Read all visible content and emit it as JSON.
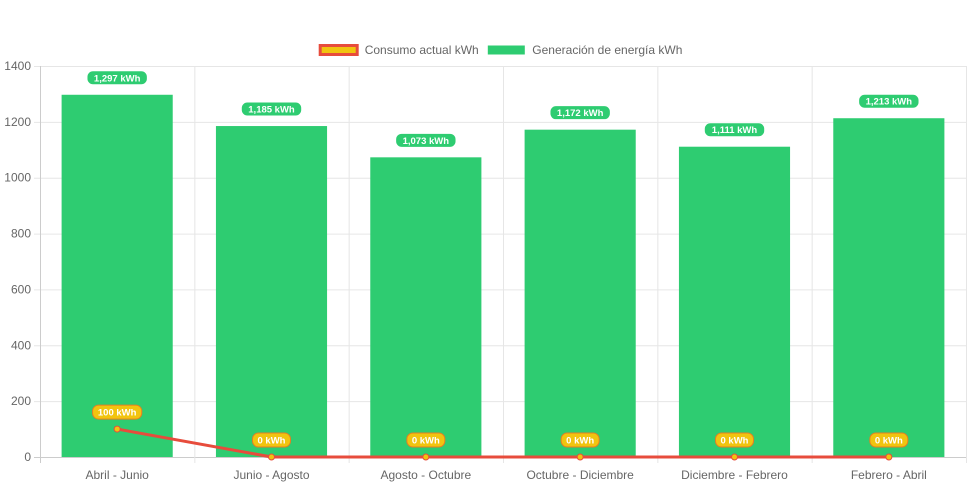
{
  "chart_data": {
    "type": "bar",
    "categories": [
      "Abril - Junio",
      "Junio - Agosto",
      "Agosto - Octubre",
      "Octubre - Diciembre",
      "Diciembre - Febrero",
      "Febrero - Abril"
    ],
    "series": [
      {
        "name": "Consumo actual kWh",
        "type": "line",
        "values": [
          100,
          0,
          0,
          0,
          0,
          0
        ],
        "labels": [
          "100 kWh",
          "0 kWh",
          "0 kWh",
          "0 kWh",
          "0 kWh",
          "0 kWh"
        ],
        "color": "#e74c3c",
        "fill_color": "#f1c40f"
      },
      {
        "name": "Generación de energía kWh",
        "type": "bar",
        "values": [
          1297,
          1185,
          1073,
          1172,
          1111,
          1213
        ],
        "labels": [
          "1,297 kWh",
          "1,185 kWh",
          "1,073 kWh",
          "1,172 kWh",
          "1,111 kWh",
          "1,213 kWh"
        ],
        "color": "#2ecc71"
      }
    ],
    "ylim": [
      0,
      1400
    ],
    "yticks": [
      "0",
      "200",
      "400",
      "600",
      "800",
      "1000",
      "1200",
      "1400"
    ],
    "grid": true,
    "legend_position": "top"
  }
}
